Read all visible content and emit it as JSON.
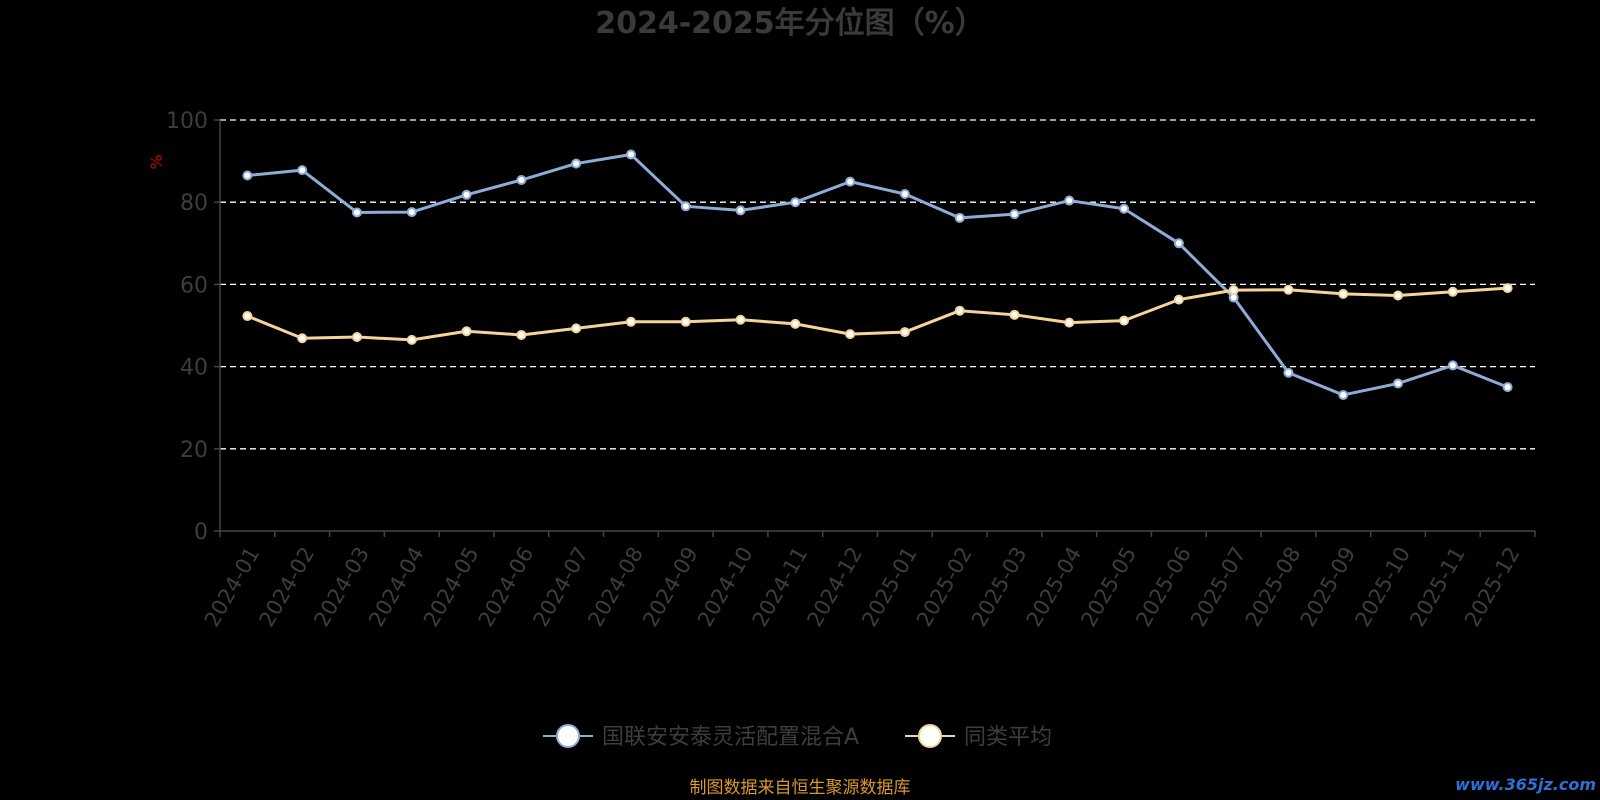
{
  "chart_data": {
    "type": "line",
    "title": "2024-2025年分位图（%）",
    "ylabel": "%",
    "xlabel": "",
    "ylim": [
      0,
      100
    ],
    "yticks": [
      0,
      20,
      40,
      60,
      80,
      100
    ],
    "grid": true,
    "legend_position": "bottom",
    "categories": [
      "2024-01",
      "2024-02",
      "2024-03",
      "2024-04",
      "2024-05",
      "2024-06",
      "2024-07",
      "2024-08",
      "2024-09",
      "2024-10",
      "2024-11",
      "2024-12",
      "2025-01",
      "2025-02",
      "2025-03",
      "2025-04",
      "2025-05",
      "2025-06",
      "2025-07",
      "2025-08",
      "2025-09",
      "2025-10",
      "2025-11",
      "2025-12"
    ],
    "series": [
      {
        "name": "国联安安泰灵活配置混合A",
        "color": "#8eacd8",
        "values": [
          86.5,
          87.8,
          77.5,
          77.6,
          81.8,
          85.4,
          89.4,
          91.6,
          79.0,
          78.0,
          80.0,
          85.0,
          82.0,
          76.2,
          77.1,
          80.4,
          78.4,
          70.0,
          56.8,
          38.5,
          33.1,
          35.9,
          40.3,
          35.0
        ]
      },
      {
        "name": "同类平均",
        "color": "#f5d49a",
        "values": [
          52.3,
          46.9,
          47.2,
          46.5,
          48.6,
          47.7,
          49.3,
          50.9,
          50.9,
          51.4,
          50.4,
          47.9,
          48.4,
          53.6,
          52.6,
          50.7,
          51.2,
          56.3,
          58.6,
          58.7,
          57.7,
          57.3,
          58.2,
          59.1
        ]
      }
    ]
  },
  "footer": {
    "source": "制图数据来自恒生聚源数据库",
    "watermark": "www.365jz.com"
  },
  "colors": {
    "background": "#000000",
    "gridline": "#ffffff",
    "source_text": "#d89a2b",
    "unit_label": "#cc0000"
  }
}
